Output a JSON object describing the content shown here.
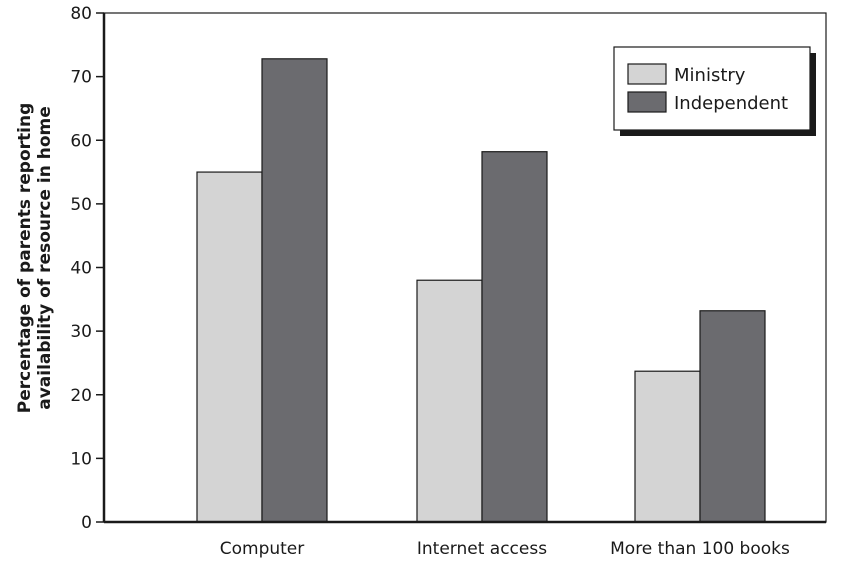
{
  "chart_data": {
    "type": "bar",
    "title": "",
    "xlabel": "",
    "ylabel_lines": [
      "Percentage of parents reporting",
      "availability of resource in home"
    ],
    "categories": [
      "Computer",
      "Internet access",
      "More than 100 books"
    ],
    "series": [
      {
        "name": "Ministry",
        "values": [
          55,
          38,
          23.7
        ],
        "color": "#d4d4d4"
      },
      {
        "name": "Independent",
        "values": [
          72.8,
          58.2,
          33.2
        ],
        "color": "#6b6b6f"
      }
    ],
    "ylim": [
      0,
      80
    ],
    "yticks": [
      0,
      10,
      20,
      30,
      40,
      50,
      60,
      70,
      80
    ],
    "grid": false,
    "legend_position": "top-right"
  }
}
